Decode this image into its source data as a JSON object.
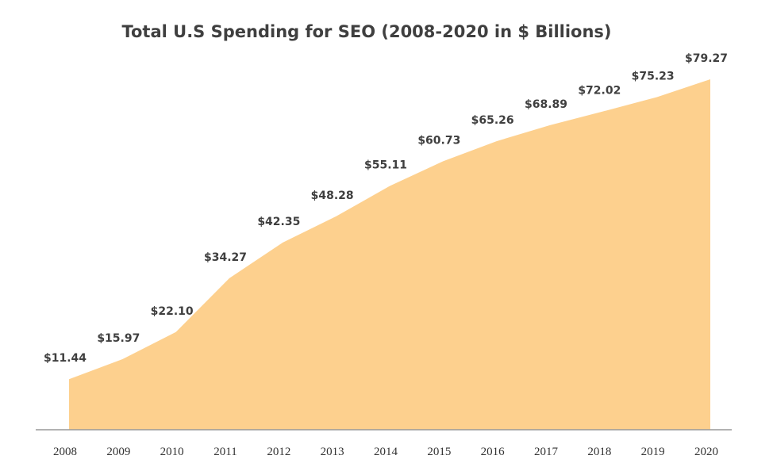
{
  "chart_data": {
    "type": "area",
    "title": "Total U.S Spending for SEO (2008-2020 in $ Billions)",
    "categories": [
      "2008",
      "2009",
      "2010",
      "2011",
      "2012",
      "2013",
      "2014",
      "2015",
      "2016",
      "2017",
      "2018",
      "2019",
      "2020"
    ],
    "values": [
      11.44,
      15.97,
      22.1,
      34.27,
      42.35,
      48.28,
      55.11,
      60.73,
      65.26,
      68.89,
      72.02,
      75.23,
      79.27
    ],
    "data_labels": [
      "$11.44",
      "$15.97",
      "$22.10",
      "$34.27",
      "$42.35",
      "$48.28",
      "$55.11",
      "$60.73",
      "$65.26",
      "$68.89",
      "$72.02",
      "$75.23",
      "$79.27"
    ],
    "xlabel": "",
    "ylabel": "",
    "ylim": [
      0,
      85
    ],
    "grid": false,
    "legend": "none",
    "colors": {
      "area": "#fdd08e",
      "axis": "#999999",
      "text": "#3f3f3f"
    }
  }
}
